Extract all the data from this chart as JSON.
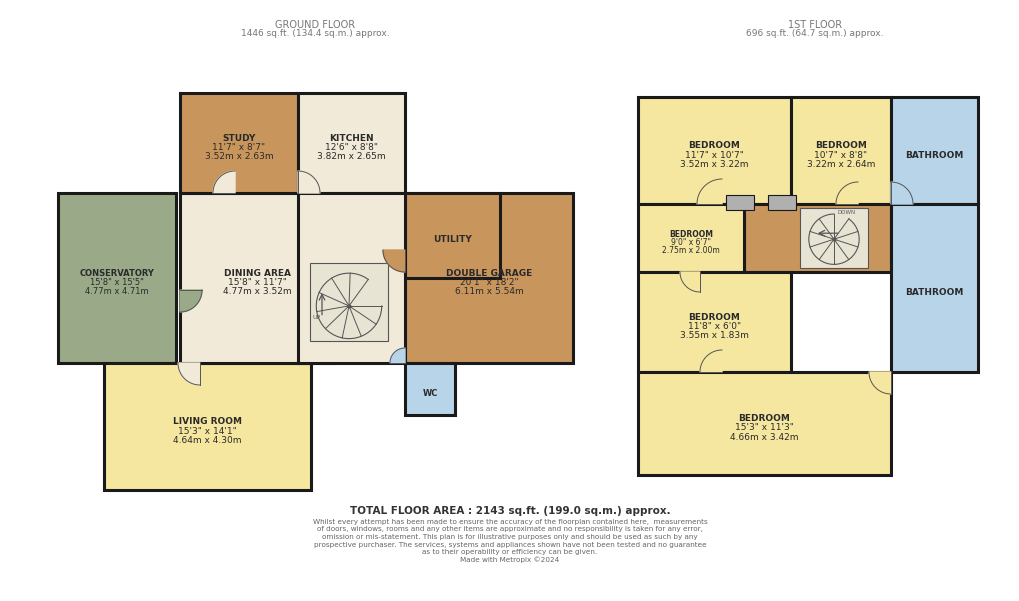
{
  "bg": "#ffffff",
  "wall": "#1a1a1a",
  "colors": {
    "yellow": "#f5e6a0",
    "tan": "#c8965c",
    "green": "#9aaa88",
    "cream": "#f2ead8",
    "lblue": "#b8d4e8",
    "gray": "#b0b0b0",
    "white": "#f8f8f0"
  },
  "gf_title": "GROUND FLOOR",
  "gf_sub": "1446 sq.ft. (134.4 sq.m.) approx.",
  "ff_title": "1ST FLOOR",
  "ff_sub": "696 sq.ft. (64.7 sq.m.) approx.",
  "total": "TOTAL FLOOR AREA : 2143 sq.ft. (199.0 sq.m.) approx.",
  "disc1": "Whilst every attempt has been made to ensure the accuracy of the floorplan contained here,  measurements",
  "disc2": "of doors, windows, rooms and any other items are approximate and no responsibility is taken for any error,",
  "disc3": "omission or mis-statement. This plan is for illustrative purposes only and should be used as such by any",
  "disc4": "prospective purchaser. The services, systems and appliances shown have not been tested and no guarantee",
  "disc5": "as to their operability or efficiency can be given.",
  "disc6": "Made with Metropix ©2024"
}
